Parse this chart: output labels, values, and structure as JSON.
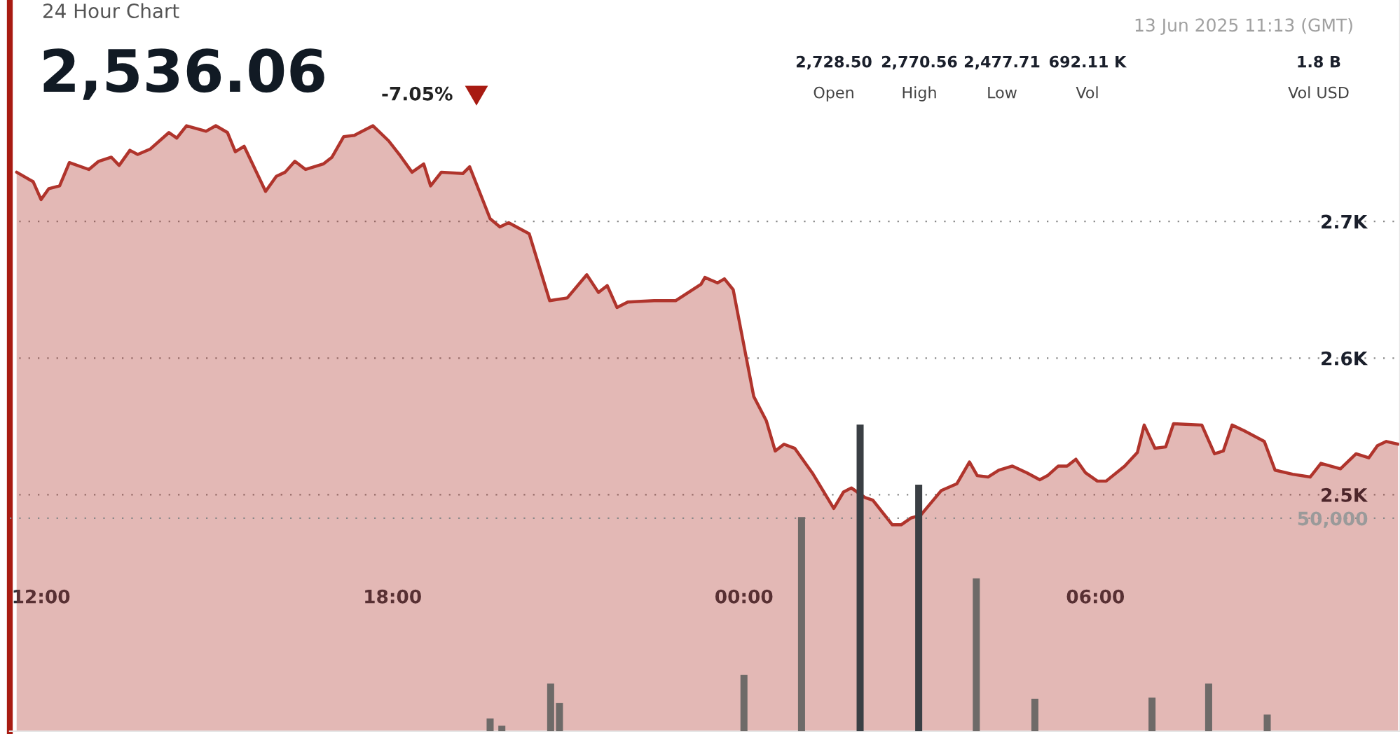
{
  "chart_data": {
    "type": "area",
    "title": "24 Hour Chart",
    "subtitle": "2,536.06",
    "annotations": [
      "-7.05%",
      "13 Jun 2025 11:13 (GMT)",
      "2,728.50",
      "Open",
      "2,770.56",
      "High",
      "2,477.71",
      "Low",
      "692.11 K",
      "Vol",
      "1.8 B",
      "Vol USD"
    ],
    "xlim": [
      "2025-06-12T11:28",
      "2025-06-13T11:12"
    ],
    "xticks": [
      {
        "value": "2025-06-12T12:00",
        "label": "12:00"
      },
      {
        "value": "2025-06-12T18:00",
        "label": "18:00"
      },
      {
        "value": "2025-06-13T00:00",
        "label": "00:00"
      },
      {
        "value": "2025-06-13T06:00",
        "label": "06:00"
      }
    ],
    "ylim": [
      2327,
      2862
    ],
    "yticks": [
      {
        "value": 2500,
        "label": "2.5K"
      },
      {
        "value": 2600,
        "label": "2.6K"
      },
      {
        "value": 2700,
        "label": "2.7K"
      }
    ],
    "y2lim": [
      0,
      171700
    ],
    "y2ticks": [
      {
        "value": 50000,
        "label": "50,000"
      }
    ],
    "grid": "y",
    "legend": false,
    "series": [
      {
        "color": "#b0342c",
        "x": [
          "2025-06-12T11:35",
          "2025-06-12T11:52",
          "2025-06-12T12:00",
          "2025-06-12T12:08",
          "2025-06-12T12:19",
          "2025-06-12T12:29",
          "2025-06-12T12:49",
          "2025-06-12T12:59",
          "2025-06-12T13:12",
          "2025-06-12T13:20",
          "2025-06-12T13:31",
          "2025-06-12T13:39",
          "2025-06-12T13:52",
          "2025-06-12T14:11",
          "2025-06-12T14:19",
          "2025-06-12T14:29",
          "2025-06-12T14:49",
          "2025-06-12T14:59",
          "2025-06-12T15:11",
          "2025-06-12T15:19",
          "2025-06-12T15:28",
          "2025-06-12T15:50",
          "2025-06-12T16:01",
          "2025-06-12T16:10",
          "2025-06-12T16:20",
          "2025-06-12T16:31",
          "2025-06-12T16:49",
          "2025-06-12T16:58",
          "2025-06-12T17:10",
          "2025-06-12T17:21",
          "2025-06-12T17:40",
          "2025-06-12T17:56",
          "2025-06-12T18:08",
          "2025-06-12T18:20",
          "2025-06-12T18:32",
          "2025-06-12T18:39",
          "2025-06-12T18:50",
          "2025-06-12T19:12",
          "2025-06-12T19:19",
          "2025-06-12T19:40",
          "2025-06-12T19:50",
          "2025-06-12T19:59",
          "2025-06-12T20:20",
          "2025-06-12T20:41",
          "2025-06-12T20:59",
          "2025-06-12T21:19",
          "2025-06-12T21:31",
          "2025-06-12T21:40",
          "2025-06-12T21:50",
          "2025-06-12T22:01",
          "2025-06-12T22:28",
          "2025-06-12T22:50",
          "2025-06-12T23:16",
          "2025-06-12T23:20",
          "2025-06-12T23:33",
          "2025-06-12T23:40",
          "2025-06-12T23:49",
          "2025-06-13T00:10",
          "2025-06-13T00:23",
          "2025-06-13T00:32",
          "2025-06-13T00:41",
          "2025-06-13T00:52",
          "2025-06-13T01:10",
          "2025-06-13T01:32",
          "2025-06-13T01:42",
          "2025-06-13T01:50",
          "2025-06-13T02:04",
          "2025-06-13T02:12",
          "2025-06-13T02:32",
          "2025-06-13T02:41",
          "2025-06-13T02:51",
          "2025-06-13T03:01",
          "2025-06-13T03:22",
          "2025-06-13T03:38",
          "2025-06-13T03:51",
          "2025-06-13T03:59",
          "2025-06-13T04:10",
          "2025-06-13T04:21",
          "2025-06-13T04:35",
          "2025-06-13T04:50",
          "2025-06-13T05:03",
          "2025-06-13T05:11",
          "2025-06-13T05:22",
          "2025-06-13T05:31",
          "2025-06-13T05:40",
          "2025-06-13T05:50",
          "2025-06-13T06:02",
          "2025-06-13T06:11",
          "2025-06-13T06:30",
          "2025-06-13T06:43",
          "2025-06-13T06:50",
          "2025-06-13T07:01",
          "2025-06-13T07:12",
          "2025-06-13T07:20",
          "2025-06-13T07:49",
          "2025-06-13T08:02",
          "2025-06-13T08:11",
          "2025-06-13T08:20",
          "2025-06-13T08:32",
          "2025-06-13T08:53",
          "2025-06-13T09:04",
          "2025-06-13T09:22",
          "2025-06-13T09:40",
          "2025-06-13T09:51",
          "2025-06-13T10:11",
          "2025-06-13T10:27",
          "2025-06-13T10:40",
          "2025-06-13T10:49",
          "2025-06-13T10:58",
          "2025-06-13T11:10"
        ],
        "values": [
          2736,
          2729,
          2716,
          2724,
          2726,
          2743,
          2738,
          2744,
          2747,
          2741,
          2752,
          2749,
          2753,
          2765,
          2761,
          2770,
          2766,
          2770,
          2765,
          2751,
          2755,
          2722,
          2733,
          2736,
          2744,
          2738,
          2742,
          2747,
          2762,
          2763,
          2770,
          2759,
          2748,
          2736,
          2742,
          2726,
          2736,
          2735,
          2740,
          2702,
          2696,
          2699,
          2691,
          2642,
          2644,
          2661,
          2648,
          2653,
          2637,
          2641,
          2642,
          2642,
          2654,
          2659,
          2655,
          2658,
          2650,
          2572,
          2554,
          2532,
          2537,
          2534,
          2516,
          2490,
          2502,
          2505,
          2498,
          2496,
          2478,
          2478,
          2483,
          2485,
          2503,
          2508,
          2524,
          2514,
          2513,
          2518,
          2521,
          2516,
          2511,
          2514,
          2521,
          2521,
          2526,
          2516,
          2510,
          2510,
          2521,
          2531,
          2551,
          2534,
          2535,
          2552,
          2551,
          2530,
          2532,
          2551,
          2547,
          2539,
          2518,
          2515,
          2513,
          2523,
          2519,
          2530,
          2527,
          2536,
          2539,
          2537
        ]
      },
      {
        "type": "bar",
        "axis": "y2",
        "x": [
          "2025-06-12T19:40",
          "2025-06-12T19:52",
          "2025-06-12T20:42",
          "2025-06-12T20:51",
          "2025-06-13T00:00",
          "2025-06-13T00:59",
          "2025-06-13T01:59",
          "2025-06-13T02:59",
          "2025-06-13T03:58",
          "2025-06-13T04:58",
          "2025-06-13T06:58",
          "2025-06-13T07:56",
          "2025-06-13T08:56"
        ],
        "values": [
          3000,
          1300,
          11200,
          6600,
          13200,
          50300,
          72000,
          57900,
          35900,
          7600,
          7900,
          11200,
          3900
        ],
        "colors": [
          "#6e6a68",
          "#6e6a68",
          "#6e6a68",
          "#6e6a68",
          "#6e6a68",
          "#6e6a68",
          "#3a3f44",
          "#3a3f44",
          "#6e6a68",
          "#6e6a68",
          "#6e6a68",
          "#6e6a68",
          "#6e6a68"
        ]
      }
    ]
  }
}
